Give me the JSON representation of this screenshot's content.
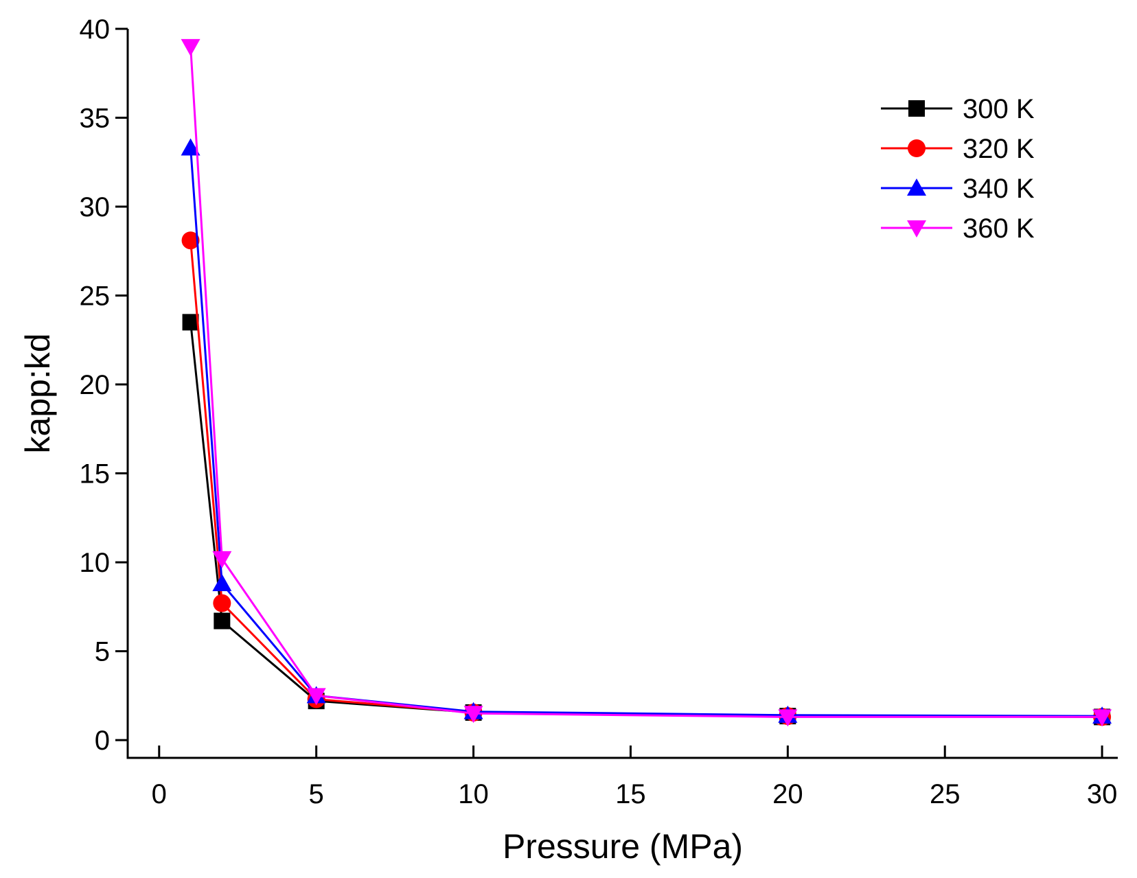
{
  "chart_data": {
    "type": "line",
    "title": "",
    "xlabel": "Pressure (MPa)",
    "ylabel": "kapp:kd",
    "xlim": [
      -1,
      30.5
    ],
    "ylim": [
      -1,
      40
    ],
    "xticks": [
      0,
      5,
      10,
      15,
      20,
      25,
      30
    ],
    "yticks": [
      0,
      5,
      10,
      15,
      20,
      25,
      30,
      35,
      40
    ],
    "x": [
      1,
      2,
      5,
      10,
      20,
      30
    ],
    "series": [
      {
        "name": "300 K",
        "color": "#000000",
        "marker": "square",
        "values": [
          23.5,
          6.7,
          2.2,
          1.55,
          1.35,
          1.3
        ]
      },
      {
        "name": "320 K",
        "color": "#ff0000",
        "marker": "circle",
        "values": [
          28.1,
          7.7,
          2.3,
          1.55,
          1.35,
          1.3
        ]
      },
      {
        "name": "340 K",
        "color": "#0000ff",
        "marker": "triangle-up",
        "values": [
          33.3,
          8.8,
          2.5,
          1.6,
          1.4,
          1.35
        ]
      },
      {
        "name": "360 K",
        "color": "#ff00ff",
        "marker": "triangle-down",
        "values": [
          39.0,
          10.2,
          2.5,
          1.5,
          1.3,
          1.3
        ]
      }
    ],
    "legend_position": "top-right",
    "grid": false
  }
}
